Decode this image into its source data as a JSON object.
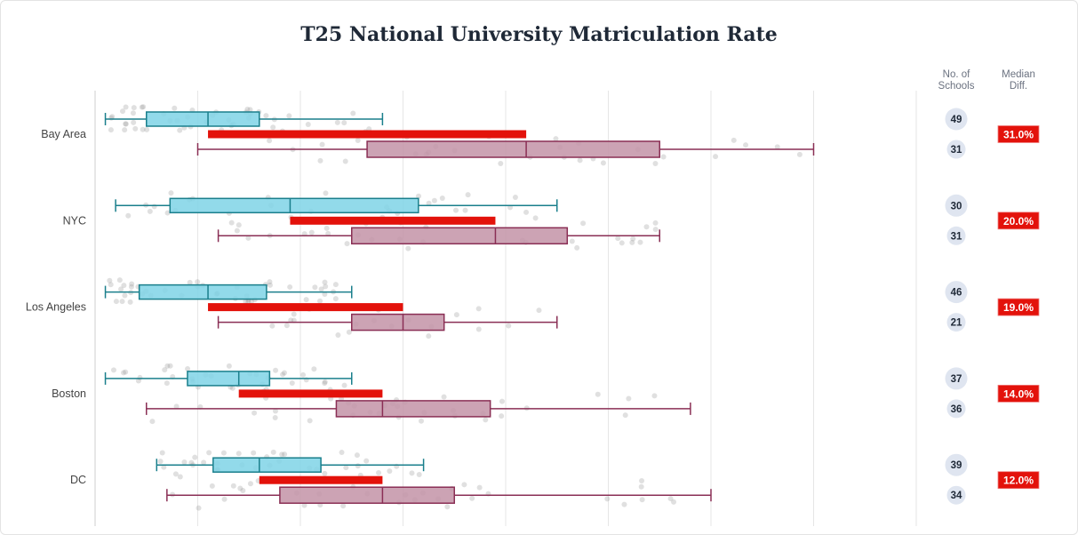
{
  "chart_data": {
    "type": "box",
    "title": "T25 National University Matriculation Rate",
    "xlim": [
      0,
      80
    ],
    "grid": true,
    "columns": {
      "count_header": "No. of Schools",
      "diff_header": "Median Diff."
    },
    "colors": {
      "group_a": "#7fd4e6",
      "group_a_stroke": "#1a7f8c",
      "group_b": "#c393a7",
      "group_b_stroke": "#8a2f55",
      "diff_bar": "#e3120b",
      "points": "#999999"
    },
    "categories": [
      "Bay Area",
      "NYC",
      "Los Angeles",
      "Boston",
      "DC"
    ],
    "series": [
      {
        "name": "group_a",
        "boxes": [
          {
            "min": 1,
            "q1": 5,
            "median": 11,
            "q3": 16,
            "max": 28,
            "n": 49
          },
          {
            "min": 2,
            "q1": 7.3,
            "median": 19,
            "q3": 31.5,
            "max": 45,
            "n": 30
          },
          {
            "min": 1,
            "q1": 4.3,
            "median": 11,
            "q3": 16.7,
            "max": 25,
            "n": 46
          },
          {
            "min": 1,
            "q1": 9,
            "median": 14,
            "q3": 17,
            "max": 25,
            "n": 37
          },
          {
            "min": 6,
            "q1": 11.5,
            "median": 16,
            "q3": 22,
            "max": 32,
            "n": 39
          }
        ]
      },
      {
        "name": "group_b",
        "boxes": [
          {
            "min": 10,
            "q1": 26.5,
            "median": 42,
            "q3": 55,
            "max": 70,
            "n": 31
          },
          {
            "min": 12,
            "q1": 25,
            "median": 39,
            "q3": 46,
            "max": 55,
            "n": 31
          },
          {
            "min": 12,
            "q1": 25,
            "median": 30,
            "q3": 34,
            "max": 45,
            "n": 21
          },
          {
            "min": 5,
            "q1": 23.5,
            "median": 28,
            "q3": 38.5,
            "max": 58,
            "n": 36
          },
          {
            "min": 7,
            "q1": 18,
            "median": 28,
            "q3": 35,
            "max": 60,
            "n": 34
          }
        ]
      }
    ],
    "median_diff_labels": [
      "31.0%",
      "20.0%",
      "19.0%",
      "14.0%",
      "12.0%"
    ],
    "count_labels": [
      [
        "49",
        "31"
      ],
      [
        "30",
        "31"
      ],
      [
        "46",
        "21"
      ],
      [
        "37",
        "36"
      ],
      [
        "39",
        "34"
      ]
    ]
  }
}
